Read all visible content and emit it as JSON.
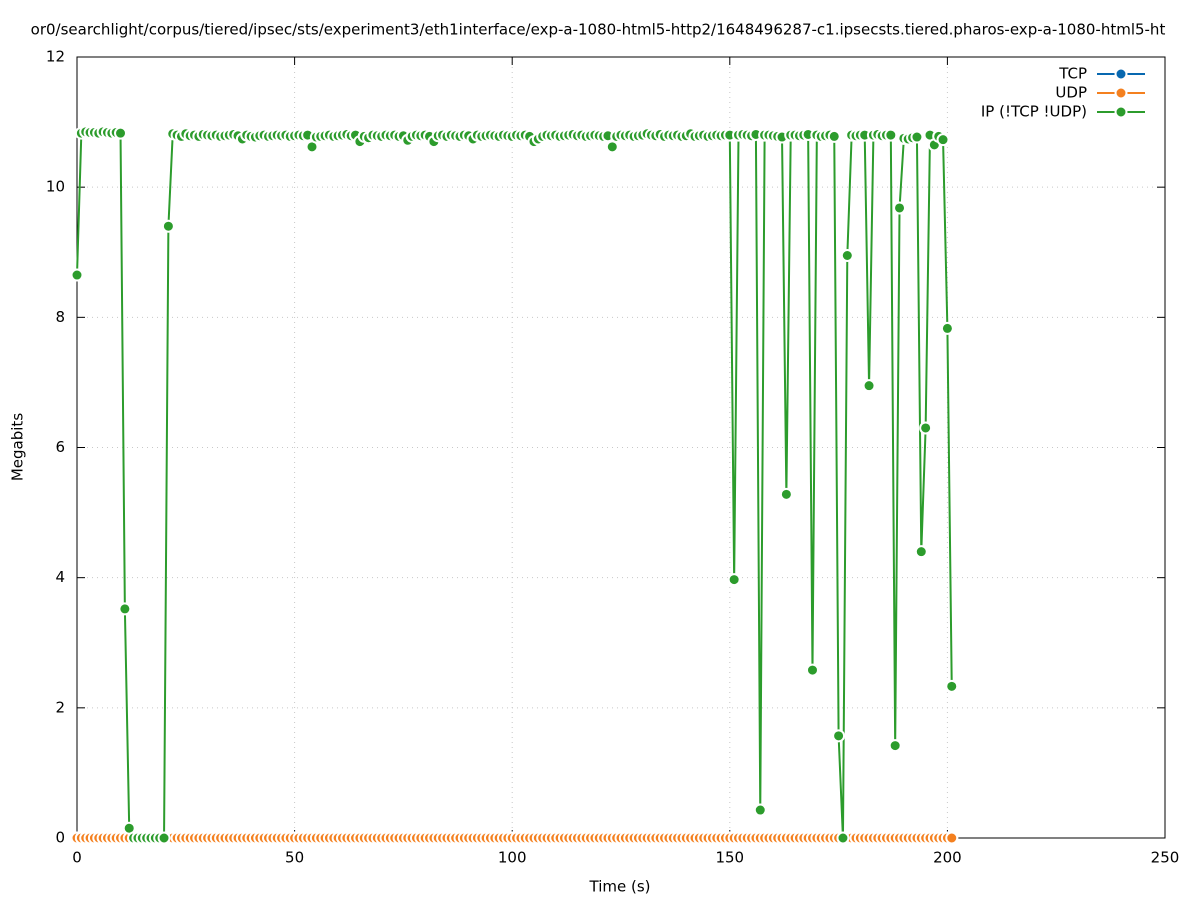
{
  "chart_data": {
    "type": "line",
    "title": "or0/searchlight/corpus/tiered/ipsec/sts/experiment3/eth1interface/exp-a-1080-html5-http2/1648496287-c1.ipsecsts.tiered.pharos-exp-a-1080-html5-ht",
    "x_label": "Time (s)",
    "y_label": "Megabits",
    "xlim": [
      0,
      250
    ],
    "xticks": [
      0,
      50,
      100,
      150,
      200,
      250
    ],
    "ylim": [
      0,
      12
    ],
    "yticks": [
      0,
      2,
      4,
      6,
      8,
      10,
      12
    ],
    "grid": true,
    "legend": "top-right",
    "x": [
      0,
      1,
      2,
      3,
      4,
      5,
      6,
      7,
      8,
      9,
      10,
      11,
      12,
      13,
      14,
      15,
      16,
      17,
      18,
      19,
      20,
      21,
      22,
      23,
      24,
      25,
      26,
      27,
      28,
      29,
      30,
      31,
      32,
      33,
      34,
      35,
      36,
      37,
      38,
      39,
      40,
      41,
      42,
      43,
      44,
      45,
      46,
      47,
      48,
      49,
      50,
      51,
      52,
      53,
      54,
      55,
      56,
      57,
      58,
      59,
      60,
      61,
      62,
      63,
      64,
      65,
      66,
      67,
      68,
      69,
      70,
      71,
      72,
      73,
      74,
      75,
      76,
      77,
      78,
      79,
      80,
      81,
      82,
      83,
      84,
      85,
      86,
      87,
      88,
      89,
      90,
      91,
      92,
      93,
      94,
      95,
      96,
      97,
      98,
      99,
      100,
      101,
      102,
      103,
      104,
      105,
      106,
      107,
      108,
      109,
      110,
      111,
      112,
      113,
      114,
      115,
      116,
      117,
      118,
      119,
      120,
      121,
      122,
      123,
      124,
      125,
      126,
      127,
      128,
      129,
      130,
      131,
      132,
      133,
      134,
      135,
      136,
      137,
      138,
      139,
      140,
      141,
      142,
      143,
      144,
      145,
      146,
      147,
      148,
      149,
      150,
      151,
      152,
      153,
      154,
      155,
      156,
      157,
      158,
      159,
      160,
      161,
      162,
      163,
      164,
      165,
      166,
      167,
      168,
      169,
      170,
      171,
      172,
      173,
      174,
      175,
      176,
      177,
      178,
      179,
      180,
      181,
      182,
      183,
      184,
      185,
      186,
      187,
      188,
      189,
      190,
      191,
      192,
      193,
      194,
      195,
      196,
      197,
      198,
      199,
      200,
      201
    ],
    "series": [
      {
        "name": "TCP",
        "color": "#0868b0",
        "values": [
          0,
          0,
          0,
          0,
          0,
          0,
          0,
          0,
          0,
          0,
          0,
          0,
          0,
          0,
          0,
          0,
          0,
          0,
          0,
          0,
          0,
          0,
          0,
          0,
          0,
          0,
          0,
          0,
          0,
          0,
          0,
          0,
          0,
          0,
          0,
          0,
          0,
          0,
          0,
          0,
          0,
          0,
          0,
          0,
          0,
          0,
          0,
          0,
          0,
          0,
          0,
          0,
          0,
          0,
          0,
          0,
          0,
          0,
          0,
          0,
          0,
          0,
          0,
          0,
          0,
          0,
          0,
          0,
          0,
          0,
          0,
          0,
          0,
          0,
          0,
          0,
          0,
          0,
          0,
          0,
          0,
          0,
          0,
          0,
          0,
          0,
          0,
          0,
          0,
          0,
          0,
          0,
          0,
          0,
          0,
          0,
          0,
          0,
          0,
          0,
          0,
          0,
          0,
          0,
          0,
          0,
          0,
          0,
          0,
          0,
          0,
          0,
          0,
          0,
          0,
          0,
          0,
          0,
          0,
          0,
          0,
          0,
          0,
          0,
          0,
          0,
          0,
          0,
          0,
          0,
          0,
          0,
          0,
          0,
          0,
          0,
          0,
          0,
          0,
          0,
          0,
          0,
          0,
          0,
          0,
          0,
          0,
          0,
          0,
          0,
          0,
          0,
          0,
          0,
          0,
          0,
          0,
          0,
          0,
          0,
          0,
          0,
          0,
          0,
          0,
          0,
          0,
          0,
          0,
          0,
          0,
          0,
          0,
          0,
          0,
          0,
          0,
          0,
          0,
          0,
          0,
          0,
          0,
          0,
          0,
          0,
          0,
          0,
          0,
          0,
          0,
          0,
          0,
          0,
          0,
          0,
          0,
          0,
          0,
          0,
          0,
          0
        ]
      },
      {
        "name": "UDP",
        "color": "#f4801f",
        "values": [
          0,
          0,
          0,
          0,
          0,
          0,
          0,
          0,
          0,
          0,
          0,
          0,
          0,
          0,
          0,
          0,
          0,
          0,
          0,
          0,
          0,
          0,
          0,
          0,
          0,
          0,
          0,
          0,
          0,
          0,
          0,
          0,
          0,
          0,
          0,
          0,
          0,
          0,
          0,
          0,
          0,
          0,
          0,
          0,
          0,
          0,
          0,
          0,
          0,
          0,
          0,
          0,
          0,
          0,
          0,
          0,
          0,
          0,
          0,
          0,
          0,
          0,
          0,
          0,
          0,
          0,
          0,
          0,
          0,
          0,
          0,
          0,
          0,
          0,
          0,
          0,
          0,
          0,
          0,
          0,
          0,
          0,
          0,
          0,
          0,
          0,
          0,
          0,
          0,
          0,
          0,
          0,
          0,
          0,
          0,
          0,
          0,
          0,
          0,
          0,
          0,
          0,
          0,
          0,
          0,
          0,
          0,
          0,
          0,
          0,
          0,
          0,
          0,
          0,
          0,
          0,
          0,
          0,
          0,
          0,
          0,
          0,
          0,
          0,
          0,
          0,
          0,
          0,
          0,
          0,
          0,
          0,
          0,
          0,
          0,
          0,
          0,
          0,
          0,
          0,
          0,
          0,
          0,
          0,
          0,
          0,
          0,
          0,
          0,
          0,
          0,
          0,
          0,
          0,
          0,
          0,
          0,
          0,
          0,
          0,
          0,
          0,
          0,
          0,
          0,
          0,
          0,
          0,
          0,
          0,
          0,
          0,
          0,
          0,
          0,
          0,
          0,
          0,
          0,
          0,
          0,
          0,
          0,
          0,
          0,
          0,
          0,
          0,
          0,
          0,
          0,
          0,
          0,
          0,
          0,
          0,
          0,
          0,
          0,
          0,
          0,
          0
        ]
      },
      {
        "name": "IP (!TCP  !UDP)",
        "color": "#2c9c2c",
        "values": [
          8.65,
          10.83,
          10.85,
          10.84,
          10.84,
          10.83,
          10.85,
          10.84,
          10.83,
          10.84,
          10.83,
          3.52,
          0.15,
          0,
          0,
          0,
          0,
          0,
          0,
          0,
          0,
          9.4,
          10.82,
          10.8,
          10.78,
          10.82,
          10.79,
          10.8,
          10.78,
          10.81,
          10.8,
          10.79,
          10.8,
          10.78,
          10.79,
          10.8,
          10.81,
          10.79,
          10.74,
          10.8,
          10.78,
          10.77,
          10.79,
          10.8,
          10.78,
          10.79,
          10.8,
          10.79,
          10.8,
          10.78,
          10.79,
          10.8,
          10.79,
          10.8,
          10.62,
          10.77,
          10.78,
          10.79,
          10.8,
          10.78,
          10.79,
          10.8,
          10.81,
          10.79,
          10.8,
          10.7,
          10.78,
          10.76,
          10.8,
          10.79,
          10.78,
          10.8,
          10.79,
          10.8,
          10.78,
          10.79,
          10.72,
          10.78,
          10.8,
          10.79,
          10.8,
          10.78,
          10.7,
          10.79,
          10.8,
          10.78,
          10.8,
          10.79,
          10.78,
          10.8,
          10.79,
          10.74,
          10.8,
          10.78,
          10.79,
          10.8,
          10.79,
          10.78,
          10.8,
          10.79,
          10.78,
          10.8,
          10.79,
          10.8,
          10.78,
          10.7,
          10.74,
          10.78,
          10.8,
          10.79,
          10.8,
          10.78,
          10.79,
          10.8,
          10.81,
          10.79,
          10.8,
          10.78,
          10.79,
          10.8,
          10.79,
          10.78,
          10.79,
          10.62,
          10.78,
          10.8,
          10.79,
          10.8,
          10.78,
          10.79,
          10.8,
          10.82,
          10.8,
          10.79,
          10.81,
          10.78,
          10.8,
          10.79,
          10.8,
          10.78,
          10.79,
          10.82,
          10.78,
          10.79,
          10.8,
          10.78,
          10.79,
          10.8,
          10.79,
          10.8,
          10.8,
          3.97,
          10.8,
          10.81,
          10.8,
          10.79,
          10.81,
          0.43,
          10.8,
          10.8,
          10.79,
          10.78,
          10.77,
          5.28,
          10.8,
          10.8,
          10.79,
          10.8,
          10.81,
          2.58,
          10.8,
          10.78,
          10.79,
          10.8,
          10.78,
          1.57,
          0,
          8.95,
          10.8,
          10.79,
          10.8,
          10.8,
          6.95,
          10.8,
          10.81,
          10.79,
          10.8,
          10.8,
          1.42,
          9.68,
          10.75,
          10.74,
          10.76,
          10.77,
          4.4,
          6.3,
          10.8,
          10.65,
          10.78,
          10.73,
          7.83,
          2.33
        ]
      }
    ]
  }
}
